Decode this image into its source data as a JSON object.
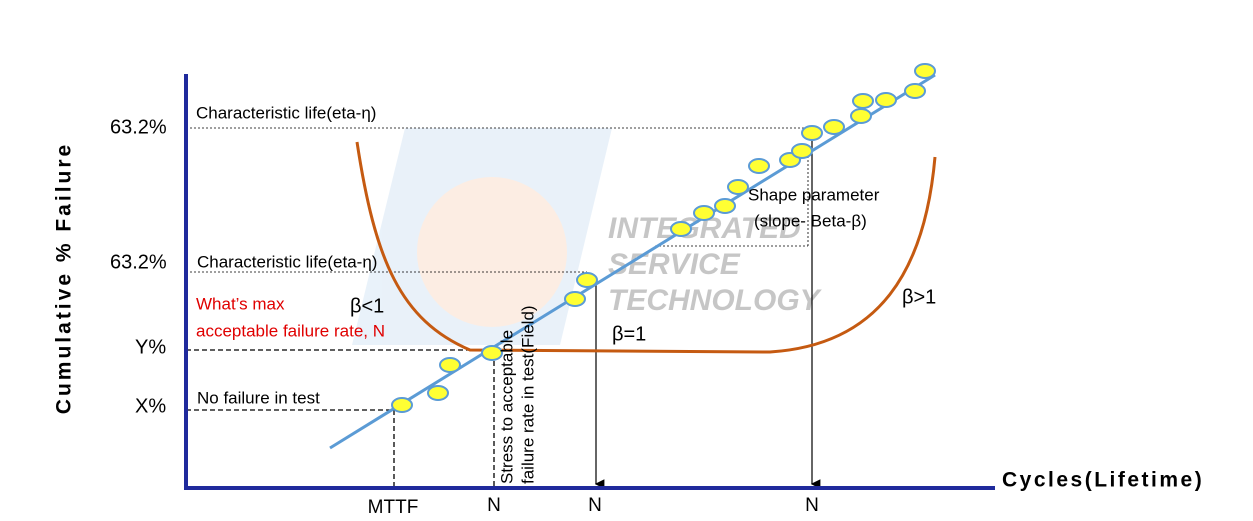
{
  "axes": {
    "y_label": "Cumulative % Failure",
    "x_label": "Cycles(Lifetime)"
  },
  "y_labels": [
    "63.2%",
    "63.2%",
    "Y%",
    "X%"
  ],
  "x_labels": [
    "MTTF",
    "N",
    "N",
    "N"
  ],
  "annotations": {
    "char_life_top": "Characteristic life(eta-η)",
    "char_life_mid": "Characteristic life(eta-η)",
    "no_failure": "No failure in test",
    "max_rate": [
      "What’s max",
      "acceptable failure rate, N"
    ],
    "beta_lt": "β<1",
    "beta_eq": "β=1",
    "beta_gt": "β>1",
    "shape": [
      "Shape parameter",
      "(slope- Beta-β)"
    ],
    "stress": [
      "Stress to acceptable",
      "failure rate in test(Field)"
    ]
  },
  "watermark": [
    "INTEGRATED",
    "SERVICE",
    "TECHNOLOGY"
  ]
}
